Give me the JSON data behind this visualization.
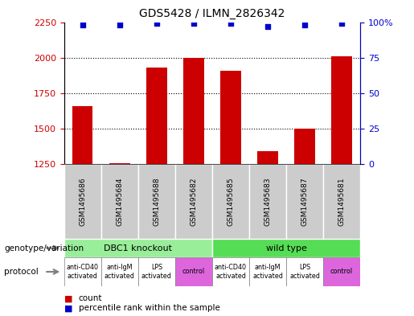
{
  "title": "GDS5428 / ILMN_2826342",
  "samples": [
    "GSM1495686",
    "GSM1495684",
    "GSM1495688",
    "GSM1495682",
    "GSM1495685",
    "GSM1495683",
    "GSM1495687",
    "GSM1495681"
  ],
  "counts": [
    1660,
    1255,
    1930,
    2000,
    1910,
    1340,
    1500,
    2010
  ],
  "percentile_ranks": [
    98,
    98,
    99,
    99,
    99,
    97,
    98,
    99
  ],
  "ylim_left": [
    1250,
    2250
  ],
  "ylim_right": [
    0,
    100
  ],
  "yticks_left": [
    1250,
    1500,
    1750,
    2000,
    2250
  ],
  "yticks_right": [
    0,
    25,
    50,
    75,
    100
  ],
  "bar_color": "#cc0000",
  "dot_color": "#0000cc",
  "bar_bottom": 1250,
  "genotype_groups": [
    {
      "label": "DBC1 knockout",
      "start": 0,
      "end": 4,
      "color": "#99ee99"
    },
    {
      "label": "wild type",
      "start": 4,
      "end": 8,
      "color": "#55dd55"
    }
  ],
  "protocol_groups": [
    {
      "label": "anti-CD40\nactivated",
      "start": 0,
      "end": 1,
      "color": "#ffffff"
    },
    {
      "label": "anti-IgM\nactivated",
      "start": 1,
      "end": 2,
      "color": "#ffffff"
    },
    {
      "label": "LPS\nactivated",
      "start": 2,
      "end": 3,
      "color": "#ffffff"
    },
    {
      "label": "control",
      "start": 3,
      "end": 4,
      "color": "#dd66dd"
    },
    {
      "label": "anti-CD40\nactivated",
      "start": 4,
      "end": 5,
      "color": "#ffffff"
    },
    {
      "label": "anti-IgM\nactivated",
      "start": 5,
      "end": 6,
      "color": "#ffffff"
    },
    {
      "label": "LPS\nactivated",
      "start": 6,
      "end": 7,
      "color": "#ffffff"
    },
    {
      "label": "control",
      "start": 7,
      "end": 8,
      "color": "#dd66dd"
    }
  ],
  "sample_box_color": "#cccccc",
  "left_label_color": "#cc0000",
  "right_label_color": "#0000cc",
  "fig_width": 5.15,
  "fig_height": 3.93,
  "dpi": 100
}
